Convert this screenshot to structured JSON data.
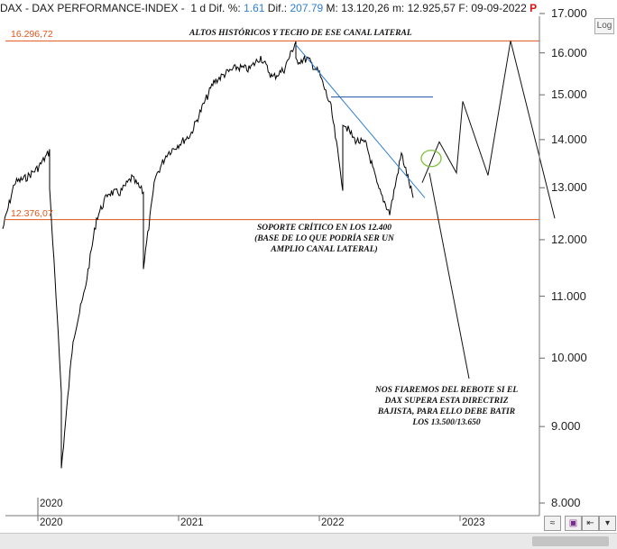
{
  "header": {
    "symbol": "DAX - DAX PERFORMANCE-INDEX -",
    "period": "1 d",
    "dif_pct_label": "Dif. %:",
    "dif_pct_value": "1.61",
    "dif_label": "Dif.:",
    "dif_value": "207.79",
    "max_label": "M:",
    "max_value": "13.120,26",
    "min_label": "m:",
    "min_value": "12.925,57",
    "date_label": "F:",
    "date_value": "09-09-2022",
    "flag": "P"
  },
  "log_button": "Log",
  "colors": {
    "price": "#000000",
    "levels": "#e0561d",
    "trendline": "#2f7fd0",
    "resistance_zone": "#1f4fa0",
    "circle": "#7fbf3f",
    "background": "#ffffff"
  },
  "annotations": {
    "highs": "ALTOS HISTÓRICOS Y TECHO DE ESE CANAL LATERAL",
    "support_1": "SOPORTE CRÍTICO EN LOS 12.400",
    "support_2": "(BASE DE LO QUE PODRÍA SER UN",
    "support_3": "AMPLIO CANAL LATERAL)",
    "bounce_1": "NOS FIAREMOS DEL REBOTE SI EL",
    "bounce_2": "DAX SUPERA ESTA DIRECTRIZ",
    "bounce_3": "BAJISTA, PARA ELLO DEBE BATIR",
    "bounce_4": "LOS 13.500/13.650"
  },
  "chart_data": {
    "type": "line",
    "scale": "log",
    "ylim": [
      8000,
      17000
    ],
    "yticks": [
      "8.000",
      "9.000",
      "10.000",
      "11.000",
      "12.000",
      "13.000",
      "14.000",
      "15.000",
      "16.000",
      "17.000"
    ],
    "ytick_values": [
      8000,
      9000,
      10000,
      11000,
      12000,
      13000,
      14000,
      15000,
      16000,
      17000
    ],
    "xticks": [
      "2020",
      "2021",
      "2022",
      "2023"
    ],
    "xtick_extra": "2020",
    "levels": [
      {
        "label": "16.296,72",
        "value": 16296.72
      },
      {
        "label": "12.376,07",
        "value": 12376.07
      }
    ],
    "resistance_zone": 14950,
    "series": [
      {
        "x": [
          "2019-10",
          "2019-11",
          "2019-12",
          "2020-01",
          "2020-02",
          "2020-02",
          "2020-03",
          "2020-03",
          "2020-04",
          "2020-05",
          "2020-06",
          "2020-07",
          "2020-08",
          "2020-09",
          "2020-10",
          "2020-10",
          "2020-11",
          "2020-12",
          "2021-01",
          "2021-02",
          "2021-03",
          "2021-04",
          "2021-05",
          "2021-06",
          "2021-07",
          "2021-08",
          "2021-09",
          "2021-10",
          "2021-11",
          "2021-11",
          "2021-12",
          "2022-01",
          "2022-02",
          "2022-03",
          "2022-03",
          "2022-04",
          "2022-05",
          "2022-06",
          "2022-07",
          "2022-08",
          "2022-09"
        ],
        "values": [
          12200,
          13100,
          13200,
          13400,
          13750,
          13000,
          9500,
          8440,
          10300,
          11100,
          12400,
          12900,
          12900,
          13200,
          12900,
          11500,
          13200,
          13700,
          13900,
          14100,
          14700,
          15300,
          15500,
          15650,
          15600,
          15900,
          15400,
          15600,
          16290,
          15800,
          15850,
          15500,
          14700,
          13000,
          14400,
          14000,
          13900,
          13000,
          12500,
          13700,
          12800
        ]
      }
    ],
    "projection": [
      13100,
      13950,
      13300,
      14850,
      13250,
      16300,
      12400
    ],
    "trendline": [
      16200,
      12800
    ]
  }
}
